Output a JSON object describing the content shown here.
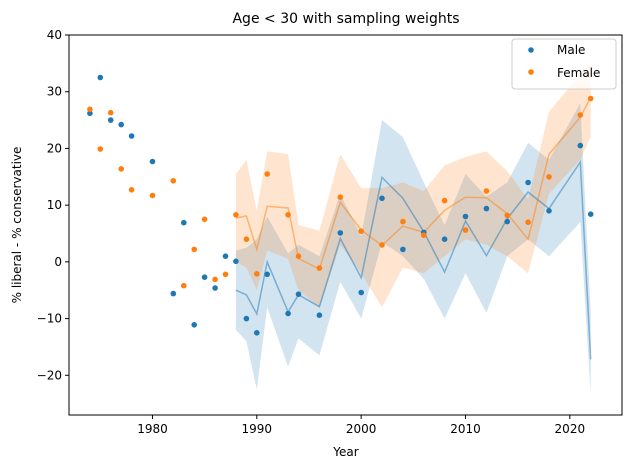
{
  "chart_data": {
    "type": "scatter",
    "title": "Age < 30 with sampling weights",
    "xlabel": "Year",
    "ylabel": "% liberal - % conservative",
    "xlim": [
      1972,
      2025
    ],
    "ylim": [
      -27,
      40
    ],
    "xticks": [
      1980,
      1990,
      2000,
      2010,
      2020
    ],
    "yticks": [
      -20,
      -10,
      0,
      10,
      20,
      30,
      40
    ],
    "grid": false,
    "legend_position": "top-right",
    "series": [
      {
        "name": "Male",
        "color": "#1f77b4",
        "points": [
          [
            1974,
            26.2
          ],
          [
            1975,
            32.5
          ],
          [
            1976,
            25.0
          ],
          [
            1977,
            24.2
          ],
          [
            1978,
            22.2
          ],
          [
            1980,
            17.7
          ],
          [
            1982,
            -5.6
          ],
          [
            1983,
            6.9
          ],
          [
            1984,
            -11.1
          ],
          [
            1985,
            -2.7
          ],
          [
            1986,
            -4.6
          ],
          [
            1987,
            1.0
          ],
          [
            1988,
            0.1
          ],
          [
            1989,
            -10.0
          ],
          [
            1990,
            -12.5
          ],
          [
            1991,
            -2.2
          ],
          [
            1993,
            -9.1
          ],
          [
            1994,
            -5.7
          ],
          [
            1996,
            -9.4
          ],
          [
            1998,
            5.1
          ],
          [
            2000,
            -5.4
          ],
          [
            2002,
            11.2
          ],
          [
            2004,
            2.2
          ],
          [
            2006,
            5.2
          ],
          [
            2008,
            4.0
          ],
          [
            2010,
            8.0
          ],
          [
            2012,
            9.4
          ],
          [
            2014,
            7.1
          ],
          [
            2016,
            14.0
          ],
          [
            2018,
            9.0
          ],
          [
            2021,
            20.5
          ],
          [
            2022,
            8.4
          ]
        ],
        "smooth": [
          [
            1988,
            -5.0
          ],
          [
            1989,
            -5.8
          ],
          [
            1990,
            -9.2
          ],
          [
            1991,
            0.0
          ],
          [
            1993,
            -8.8
          ],
          [
            1994,
            -5.8
          ],
          [
            1996,
            -7.9
          ],
          [
            1998,
            4.1
          ],
          [
            2000,
            -2.8
          ],
          [
            2002,
            14.9
          ],
          [
            2004,
            11.2
          ],
          [
            2006,
            5.3
          ],
          [
            2008,
            -1.8
          ],
          [
            2010,
            7.2
          ],
          [
            2012,
            1.1
          ],
          [
            2014,
            7.6
          ],
          [
            2016,
            12.3
          ],
          [
            2018,
            9.4
          ],
          [
            2021,
            17.6
          ],
          [
            2022,
            -17.2
          ]
        ],
        "band": [
          [
            1988,
            -12.0,
            2.0
          ],
          [
            1989,
            -14.0,
            2.5
          ],
          [
            1990,
            -22.5,
            4.0
          ],
          [
            1991,
            -8.0,
            8.0
          ],
          [
            1993,
            -18.5,
            1.5
          ],
          [
            1994,
            -13.5,
            3.0
          ],
          [
            1996,
            -16.5,
            1.0
          ],
          [
            1998,
            -3.5,
            12.0
          ],
          [
            2000,
            -10.0,
            4.5
          ],
          [
            2002,
            3.5,
            25.0
          ],
          [
            2004,
            1.0,
            22.0
          ],
          [
            2006,
            -3.0,
            14.0
          ],
          [
            2008,
            -10.0,
            6.5
          ],
          [
            2010,
            -2.0,
            15.5
          ],
          [
            2012,
            -9.0,
            11.5
          ],
          [
            2014,
            1.0,
            14.0
          ],
          [
            2016,
            4.0,
            21.0
          ],
          [
            2018,
            1.0,
            18.0
          ],
          [
            2021,
            7.0,
            28.0
          ],
          [
            2022,
            -23.5,
            -9.0
          ]
        ]
      },
      {
        "name": "Female",
        "color": "#ff7f0e",
        "points": [
          [
            1974,
            26.9
          ],
          [
            1975,
            19.9
          ],
          [
            1976,
            26.3
          ],
          [
            1977,
            16.4
          ],
          [
            1978,
            12.7
          ],
          [
            1980,
            11.7
          ],
          [
            1982,
            14.3
          ],
          [
            1983,
            -4.2
          ],
          [
            1984,
            2.2
          ],
          [
            1985,
            7.5
          ],
          [
            1986,
            -3.1
          ],
          [
            1987,
            -2.2
          ],
          [
            1988,
            8.3
          ],
          [
            1989,
            4.0
          ],
          [
            1990,
            -2.1
          ],
          [
            1991,
            15.5
          ],
          [
            1993,
            8.3
          ],
          [
            1994,
            1.0
          ],
          [
            1996,
            -1.1
          ],
          [
            1998,
            11.4
          ],
          [
            2000,
            5.4
          ],
          [
            2002,
            3.0
          ],
          [
            2004,
            7.1
          ],
          [
            2006,
            4.7
          ],
          [
            2008,
            10.8
          ],
          [
            2010,
            5.6
          ],
          [
            2012,
            12.5
          ],
          [
            2014,
            8.2
          ],
          [
            2016,
            7.0
          ],
          [
            2018,
            15.0
          ],
          [
            2021,
            25.9
          ],
          [
            2022,
            28.8
          ]
        ],
        "smooth": [
          [
            1988,
            7.7
          ],
          [
            1989,
            8.1
          ],
          [
            1990,
            2.2
          ],
          [
            1991,
            9.8
          ],
          [
            1993,
            9.5
          ],
          [
            1994,
            0.6
          ],
          [
            1996,
            -1.3
          ],
          [
            1998,
            10.5
          ],
          [
            2000,
            5.6
          ],
          [
            2002,
            2.9
          ],
          [
            2004,
            6.3
          ],
          [
            2006,
            5.2
          ],
          [
            2008,
            9.1
          ],
          [
            2010,
            11.4
          ],
          [
            2012,
            11.3
          ],
          [
            2014,
            8.5
          ],
          [
            2016,
            4.0
          ],
          [
            2018,
            19.0
          ],
          [
            2021,
            25.5
          ],
          [
            2022,
            29.0
          ]
        ],
        "band": [
          [
            1988,
            0.0,
            15.5
          ],
          [
            1989,
            -1.0,
            18.0
          ],
          [
            1990,
            -5.0,
            9.0
          ],
          [
            1991,
            2.0,
            19.5
          ],
          [
            1993,
            0.5,
            19.0
          ],
          [
            1994,
            -5.0,
            6.5
          ],
          [
            1996,
            -8.0,
            5.5
          ],
          [
            1998,
            3.0,
            19.0
          ],
          [
            2000,
            -2.0,
            13.0
          ],
          [
            2002,
            -8.0,
            13.0
          ],
          [
            2004,
            -1.0,
            14.0
          ],
          [
            2006,
            -2.0,
            12.5
          ],
          [
            2008,
            1.0,
            17.0
          ],
          [
            2010,
            4.0,
            18.5
          ],
          [
            2012,
            3.0,
            19.5
          ],
          [
            2014,
            1.0,
            16.0
          ],
          [
            2016,
            -2.0,
            11.0
          ],
          [
            2018,
            12.0,
            26.5
          ],
          [
            2021,
            18.0,
            33.0
          ],
          [
            2022,
            22.0,
            35.0
          ]
        ]
      }
    ]
  }
}
